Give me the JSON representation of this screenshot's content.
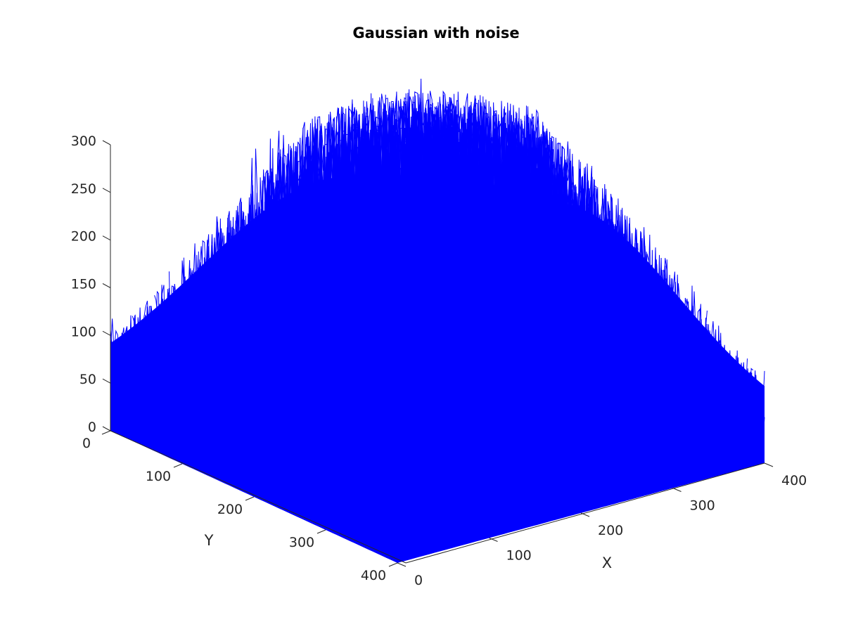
{
  "chart_data": {
    "type": "surface3d-mesh",
    "title": "Gaussian with noise",
    "xlabel": "X",
    "ylabel": "Y",
    "zlabel": "",
    "xlim": [
      0,
      400
    ],
    "ylim": [
      0,
      400
    ],
    "zlim": [
      0,
      300
    ],
    "x_ticks": [
      "0",
      "100",
      "200",
      "300",
      "400"
    ],
    "y_ticks": [
      "0",
      "100",
      "200",
      "300",
      "400"
    ],
    "z_ticks": [
      "0",
      "50",
      "100",
      "150",
      "200",
      "250",
      "300"
    ],
    "series": [
      {
        "color": "#0000ff",
        "model": "noisy 2D Gaussian surface over a 400x400 grid",
        "grid_size": [
          400,
          400
        ],
        "baseline_mean": 40,
        "peak_mean": 250,
        "max_value": 305,
        "noise_spikes_max": 300
      }
    ],
    "grid": false,
    "legend": "none",
    "view": "3d-perspective"
  }
}
